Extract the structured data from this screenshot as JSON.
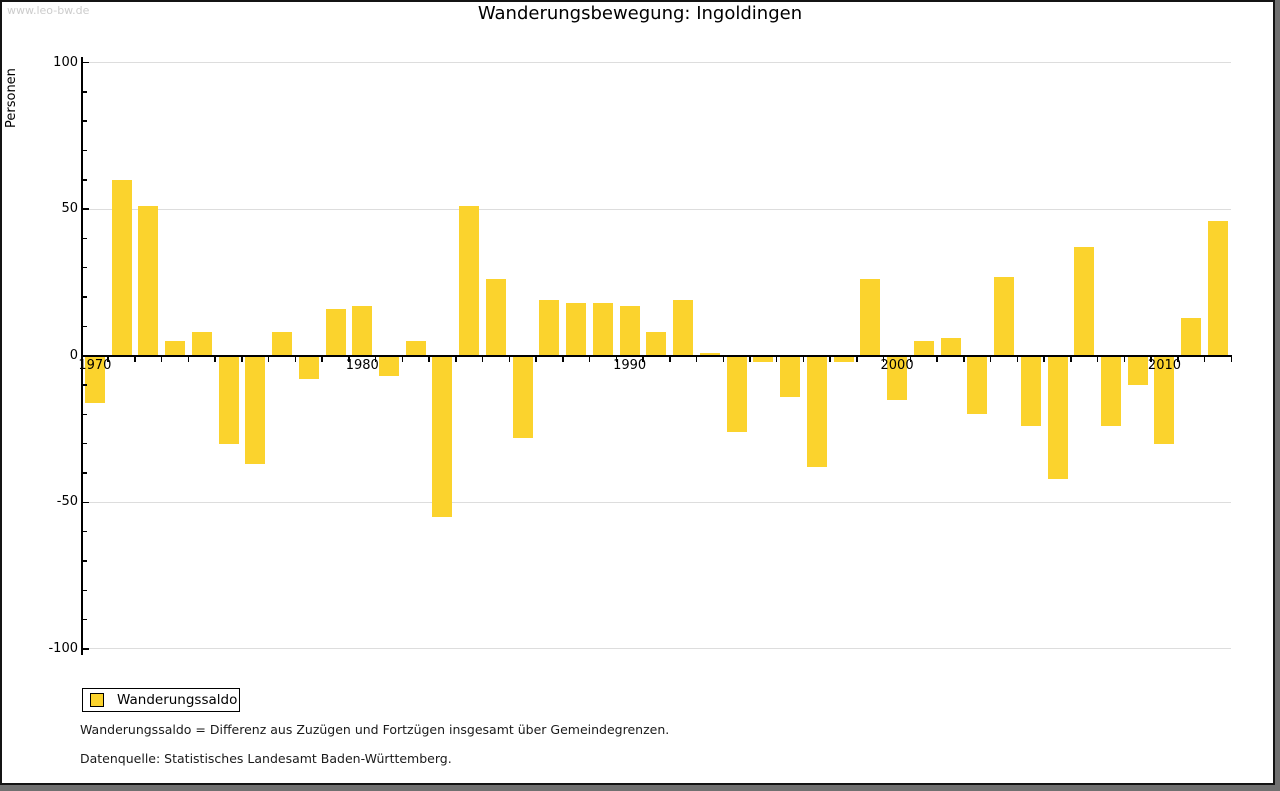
{
  "watermark": "www.leo-bw.de",
  "title": "Wanderungsbewegung: Ingoldingen",
  "legend": {
    "label": "Wanderungssaldo"
  },
  "footnotes": [
    "Wanderungssaldo = Differenz aus Zuzügen und Fortzügen insgesamt über Gemeindegrenzen.",
    "Datenquelle: Statistisches Landesamt Baden-Württemberg."
  ],
  "chart_data": {
    "type": "bar",
    "title": "Wanderungsbewegung: Ingoldingen",
    "ylabel": "Personen",
    "xlabel": "",
    "series_name": "Wanderungssaldo",
    "years": [
      1970,
      1971,
      1972,
      1973,
      1974,
      1975,
      1976,
      1977,
      1978,
      1979,
      1980,
      1981,
      1982,
      1983,
      1984,
      1985,
      1986,
      1987,
      1988,
      1989,
      1990,
      1991,
      1992,
      1993,
      1994,
      1995,
      1996,
      1997,
      1998,
      1999,
      2000,
      2001,
      2002,
      2003,
      2004,
      2005,
      2006,
      2007,
      2008,
      2009,
      2010,
      2011,
      2012
    ],
    "values": [
      -16,
      60,
      51,
      5,
      8,
      -30,
      -37,
      8,
      -8,
      16,
      17,
      -7,
      5,
      -55,
      51,
      26,
      -28,
      19,
      18,
      18,
      17,
      8,
      19,
      1,
      -26,
      -2,
      -14,
      -38,
      -2,
      26,
      -15,
      5,
      6,
      -20,
      27,
      -24,
      -42,
      37,
      -24,
      -10,
      -30,
      13,
      46
    ],
    "ylim": [
      -100,
      100
    ],
    "y_ticks_labeled": [
      100,
      50,
      0,
      -50,
      -100
    ],
    "y_minor_tick_step": 10,
    "x_ticks_labeled": [
      1970,
      1980,
      1990,
      2000,
      2010
    ],
    "grid": "horizontal lines at 100, 50, -50, -100",
    "legend_position": "bottom-left",
    "bar_color": "#FBD32D",
    "grid_color": "#DDDDDD",
    "axis_color": "#000000",
    "watermark_color": "#CCCCCC"
  }
}
